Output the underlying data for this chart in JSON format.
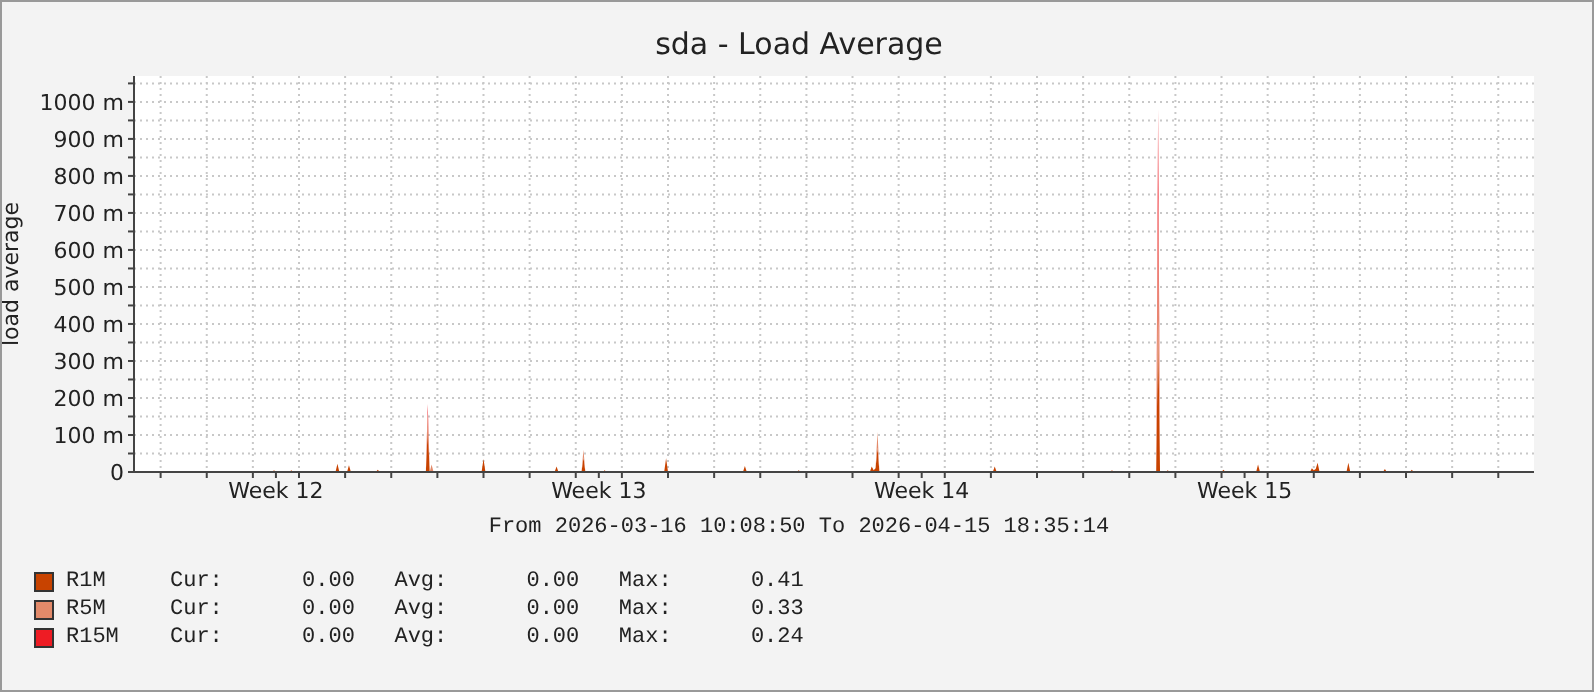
{
  "chart_data": {
    "type": "area",
    "title": "sda - Load Average",
    "ylabel": "load average",
    "stacked": true,
    "grid": true,
    "legend": "bottom",
    "annotations": [
      "From 2026-03-16 10:08:50 To 2026-04-15 18:35:14",
      "Cur:      0.00   Avg:      0.00   Max:      0.41",
      "Cur:      0.00   Avg:      0.00   Max:      0.33",
      "Cur:      0.00   Avg:      0.00   Max:      0.24"
    ],
    "xlim": [
      "2026-03-16T10:09",
      "2026-04-15T18:35"
    ],
    "xticks": [
      {
        "value": "2026-03-17",
        "label": null
      },
      {
        "value": "2026-03-18",
        "label": null
      },
      {
        "value": "2026-03-19",
        "label": null
      },
      {
        "value": "2026-03-19T12:00",
        "label": "Week 12"
      },
      {
        "value": "2026-03-20",
        "label": null
      },
      {
        "value": "2026-03-21",
        "label": null
      },
      {
        "value": "2026-03-22",
        "label": null
      },
      {
        "value": "2026-03-23",
        "label": null
      },
      {
        "value": "2026-03-24",
        "label": null
      },
      {
        "value": "2026-03-25",
        "label": null
      },
      {
        "value": "2026-03-26",
        "label": null
      },
      {
        "value": "2026-03-26T12:00",
        "label": "Week 13"
      },
      {
        "value": "2026-03-27",
        "label": null
      },
      {
        "value": "2026-03-28",
        "label": null
      },
      {
        "value": "2026-03-29",
        "label": null
      },
      {
        "value": "2026-03-30",
        "label": null
      },
      {
        "value": "2026-03-31",
        "label": null
      },
      {
        "value": "2026-04-01",
        "label": null
      },
      {
        "value": "2026-04-02",
        "label": null
      },
      {
        "value": "2026-04-02T12:00",
        "label": "Week 14"
      },
      {
        "value": "2026-04-03",
        "label": null
      },
      {
        "value": "2026-04-04",
        "label": null
      },
      {
        "value": "2026-04-05",
        "label": null
      },
      {
        "value": "2026-04-06",
        "label": null
      },
      {
        "value": "2026-04-07",
        "label": null
      },
      {
        "value": "2026-04-08",
        "label": null
      },
      {
        "value": "2026-04-09",
        "label": null
      },
      {
        "value": "2026-04-09T12:00",
        "label": "Week 15"
      },
      {
        "value": "2026-04-10",
        "label": null
      },
      {
        "value": "2026-04-11",
        "label": null
      },
      {
        "value": "2026-04-12",
        "label": null
      },
      {
        "value": "2026-04-13",
        "label": null
      },
      {
        "value": "2026-04-14",
        "label": null
      },
      {
        "value": "2026-04-15",
        "label": null
      }
    ],
    "ylim": [
      0,
      1070
    ],
    "yticks": [
      {
        "value": 0,
        "label": "0"
      },
      {
        "value": 50,
        "label": null
      },
      {
        "value": 100,
        "label": "100 m"
      },
      {
        "value": 150,
        "label": null
      },
      {
        "value": 200,
        "label": "200 m"
      },
      {
        "value": 250,
        "label": null
      },
      {
        "value": 300,
        "label": "300 m"
      },
      {
        "value": 350,
        "label": null
      },
      {
        "value": 400,
        "label": "400 m"
      },
      {
        "value": 450,
        "label": null
      },
      {
        "value": 500,
        "label": "500 m"
      },
      {
        "value": 550,
        "label": null
      },
      {
        "value": 600,
        "label": "600 m"
      },
      {
        "value": 650,
        "label": null
      },
      {
        "value": 700,
        "label": "700 m"
      },
      {
        "value": 750,
        "label": null
      },
      {
        "value": 800,
        "label": "800 m"
      },
      {
        "value": 850,
        "label": null
      },
      {
        "value": 900,
        "label": "900 m"
      },
      {
        "value": 950,
        "label": null
      },
      {
        "value": 1000,
        "label": "1000 m"
      },
      {
        "value": 1050,
        "label": null
      }
    ],
    "x": [
      "2026-03-16T11:00",
      "2026-03-19T10:00",
      "2026-03-19T11:00",
      "2026-03-19T12:00",
      "2026-03-19T19:00",
      "2026-03-19T20:00",
      "2026-03-19T21:00",
      "2026-03-20T19:00",
      "2026-03-20T20:00",
      "2026-03-20T21:00",
      "2026-03-21T01:00",
      "2026-03-21T02:00",
      "2026-03-21T03:00",
      "2026-03-21T16:00",
      "2026-03-21T17:00",
      "2026-03-21T18:00",
      "2026-03-22T18:00",
      "2026-03-22T19:00",
      "2026-03-22T20:00",
      "2026-03-22T21:00",
      "2026-03-22T22:00",
      "2026-03-23T23:00",
      "2026-03-24T00:00",
      "2026-03-24T01:00",
      "2026-03-25T13:00",
      "2026-03-25T14:00",
      "2026-03-25T15:00",
      "2026-03-26T03:00",
      "2026-03-26T04:00",
      "2026-03-26T05:00",
      "2026-03-26T14:00",
      "2026-03-26T15:00",
      "2026-03-26T16:00",
      "2026-03-27T22:00",
      "2026-03-27T23:00",
      "2026-03-28T00:00",
      "2026-03-29T15:00",
      "2026-03-29T16:00",
      "2026-03-29T17:00",
      "2026-03-30T19:00",
      "2026-03-30T20:00",
      "2026-03-30T21:00",
      "2026-04-01T09:00",
      "2026-04-01T10:00",
      "2026-04-01T11:00",
      "2026-04-01T12:00",
      "2026-04-01T13:00",
      "2026-04-01T14:00",
      "2026-04-04T01:00",
      "2026-04-04T02:00",
      "2026-04-04T03:00",
      "2026-04-06T14:00",
      "2026-04-06T15:00",
      "2026-04-06T16:00",
      "2026-04-07T14:00",
      "2026-04-07T15:00",
      "2026-04-07T16:00",
      "2026-04-07T19:00",
      "2026-04-07T20:00",
      "2026-04-07T21:00",
      "2026-04-09T00:00",
      "2026-04-09T01:00",
      "2026-04-09T02:00",
      "2026-04-09T18:00",
      "2026-04-09T19:00",
      "2026-04-09T20:00",
      "2026-04-10T22:00",
      "2026-04-10T23:00",
      "2026-04-11T00:00",
      "2026-04-11T01:00",
      "2026-04-11T02:00",
      "2026-04-11T03:00",
      "2026-04-11T17:00",
      "2026-04-11T18:00",
      "2026-04-11T19:00",
      "2026-04-12T12:00",
      "2026-04-12T13:00",
      "2026-04-12T14:00",
      "2026-04-13T02:00",
      "2026-04-13T03:00",
      "2026-04-13T04:00",
      "2026-04-15T18:00"
    ],
    "series": [
      {
        "name": "R1M",
        "color": "#c84300",
        "values": [
          0,
          0,
          5,
          0,
          0,
          5,
          0,
          0,
          22,
          0,
          0,
          18,
          0,
          0,
          6,
          0,
          0,
          120,
          0,
          0,
          0,
          0,
          35,
          0,
          0,
          15,
          0,
          0,
          40,
          0,
          0,
          5,
          0,
          0,
          37,
          0,
          0,
          16,
          0,
          0,
          5,
          0,
          0,
          15,
          5,
          10,
          66,
          0,
          0,
          15,
          0,
          0,
          5,
          0,
          0,
          410,
          0,
          0,
          5,
          0,
          0,
          6,
          0,
          0,
          20,
          0,
          0,
          10,
          5,
          8,
          25,
          0,
          0,
          25,
          0,
          0,
          8,
          0,
          0,
          6,
          0,
          0
        ]
      },
      {
        "name": "R5M",
        "color": "#e38a6a",
        "values": [
          0,
          0,
          0,
          0,
          0,
          0,
          0,
          0,
          0,
          0,
          0,
          0,
          0,
          0,
          0,
          0,
          0,
          40,
          0,
          20,
          0,
          0,
          0,
          0,
          0,
          0,
          0,
          0,
          20,
          0,
          0,
          0,
          0,
          0,
          0,
          0,
          0,
          0,
          0,
          0,
          0,
          0,
          0,
          0,
          0,
          0,
          42,
          0,
          0,
          0,
          0,
          0,
          0,
          0,
          0,
          330,
          0,
          0,
          0,
          0,
          0,
          0,
          0,
          0,
          0,
          0,
          0,
          0,
          0,
          0,
          0,
          0,
          0,
          0,
          0,
          0,
          0,
          0,
          0,
          0,
          0,
          0
        ]
      },
      {
        "name": "R15M",
        "color": "#ee1c24",
        "values": [
          0,
          0,
          0,
          0,
          0,
          0,
          0,
          0,
          0,
          0,
          0,
          0,
          0,
          0,
          0,
          0,
          0,
          24,
          0,
          0,
          0,
          0,
          0,
          0,
          0,
          0,
          0,
          0,
          0,
          0,
          0,
          0,
          0,
          0,
          0,
          0,
          0,
          0,
          0,
          0,
          0,
          0,
          0,
          0,
          0,
          0,
          0,
          0,
          0,
          0,
          0,
          0,
          0,
          0,
          0,
          240,
          0,
          0,
          0,
          0,
          0,
          0,
          0,
          0,
          0,
          0,
          0,
          0,
          0,
          0,
          0,
          0,
          0,
          0,
          0,
          0,
          0,
          0,
          0,
          0,
          0,
          0
        ]
      }
    ]
  }
}
